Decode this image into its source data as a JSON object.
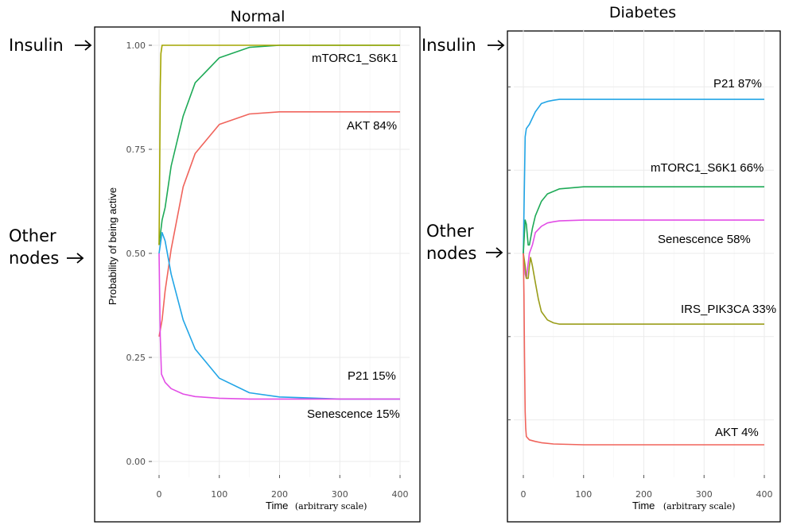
{
  "panels": {
    "normal": {
      "title": "Normal",
      "insulin_label": "Insulin",
      "other_label_line1": "Other",
      "other_label_line2": "nodes",
      "ylabel": "Probability of being active",
      "xlabel_main": "Time",
      "xlabel_unit": "(arbitrary scale)",
      "x_ticks": [
        "0",
        "100",
        "200",
        "300",
        "400"
      ],
      "y_ticks": [
        "0.00",
        "0.25",
        "0.50",
        "0.75",
        "1.00"
      ],
      "series_labels": [
        "mTORC1_S6K1",
        "AKT 84%",
        "P21 15%",
        "Senescence 15%"
      ]
    },
    "diabetes": {
      "title": "Diabetes",
      "insulin_label": "Insulin",
      "other_label_line1": "Other",
      "other_label_line2": "nodes",
      "xlabel_main": "Time",
      "xlabel_unit": "(arbitrary scale)",
      "x_ticks": [
        "0",
        "100",
        "200",
        "300",
        "400"
      ],
      "series_labels": [
        "P21 87%",
        "mTORC1_S6K1 66%",
        "Senescence 58%",
        "IRS_PIK3CA 33%",
        "AKT 4%"
      ]
    }
  },
  "colors": {
    "insulin_olive": "#a3a500",
    "mtorc_green": "#1eaa57",
    "akt_red": "#f0645c",
    "p21_blue": "#22a5e6",
    "senescence_magenta": "#e24ee6",
    "irs_olive": "#9a9d1a"
  },
  "chart_data": [
    {
      "type": "line",
      "title": "Normal",
      "xlabel": "Time (arbitrary scale)",
      "ylabel": "Probability of being active",
      "xlim": [
        0,
        400
      ],
      "ylim": [
        0,
        1
      ],
      "grid": true,
      "series": [
        {
          "name": "mTORC1_S6K1",
          "color": "#1eaa57",
          "x": [
            0,
            5,
            10,
            20,
            40,
            60,
            100,
            150,
            200,
            300,
            400
          ],
          "y": [
            0.52,
            0.58,
            0.61,
            0.71,
            0.83,
            0.91,
            0.97,
            0.995,
            1.0,
            1.0,
            1.0
          ]
        },
        {
          "name": "AKT 84%",
          "color": "#f0645c",
          "x": [
            0,
            5,
            10,
            20,
            40,
            60,
            100,
            150,
            200,
            300,
            400
          ],
          "y": [
            0.3,
            0.34,
            0.41,
            0.51,
            0.66,
            0.74,
            0.81,
            0.835,
            0.84,
            0.84,
            0.84
          ]
        },
        {
          "name": "P21 15%",
          "color": "#22a5e6",
          "x": [
            0,
            5,
            10,
            20,
            40,
            60,
            100,
            150,
            200,
            300,
            400
          ],
          "y": [
            0.5,
            0.55,
            0.53,
            0.45,
            0.34,
            0.27,
            0.2,
            0.165,
            0.155,
            0.15,
            0.15
          ]
        },
        {
          "name": "Senescence 15%",
          "color": "#e24ee6",
          "x": [
            0,
            2,
            4,
            10,
            20,
            40,
            60,
            100,
            150,
            200,
            300,
            400
          ],
          "y": [
            0.5,
            0.3,
            0.21,
            0.19,
            0.175,
            0.162,
            0.156,
            0.152,
            0.15,
            0.15,
            0.15,
            0.15
          ]
        },
        {
          "color": "#a3a500",
          "x": [
            0,
            1,
            2,
            3,
            5,
            10,
            50,
            100,
            200,
            300,
            400
          ],
          "y": [
            0.52,
            0.7,
            0.9,
            0.98,
            1.0,
            1.0,
            1.0,
            1.0,
            1.0,
            1.0,
            1.0
          ]
        }
      ]
    },
    {
      "type": "line",
      "title": "Diabetes",
      "xlabel": "Time (arbitrary scale)",
      "xlim": [
        0,
        400
      ],
      "grid": true,
      "series": [
        {
          "name": "P21 87%",
          "color": "#22a5e6",
          "x": [
            0,
            3,
            5,
            10,
            20,
            30,
            40,
            50,
            60,
            100,
            200,
            300,
            400
          ],
          "y": [
            0.5,
            0.78,
            0.8,
            0.81,
            0.84,
            0.86,
            0.865,
            0.868,
            0.87,
            0.87,
            0.87,
            0.87,
            0.87
          ]
        },
        {
          "name": "mTORC1_S6K1 66%",
          "color": "#1eaa57",
          "x": [
            0,
            3,
            5,
            8,
            10,
            15,
            20,
            30,
            40,
            60,
            100,
            200,
            300,
            400
          ],
          "y": [
            0.5,
            0.58,
            0.57,
            0.52,
            0.52,
            0.56,
            0.59,
            0.625,
            0.643,
            0.655,
            0.66,
            0.66,
            0.66,
            0.66
          ]
        },
        {
          "name": "Senescence 58%",
          "color": "#e24ee6",
          "x": [
            0,
            3,
            5,
            10,
            15,
            20,
            30,
            40,
            50,
            60,
            100,
            200,
            300,
            400
          ],
          "y": [
            0.5,
            0.45,
            0.44,
            0.5,
            0.52,
            0.55,
            0.565,
            0.573,
            0.576,
            0.578,
            0.58,
            0.58,
            0.58,
            0.58
          ]
        },
        {
          "name": "IRS_PIK3CA 33%",
          "color": "#9a9d1a",
          "x": [
            0,
            3,
            5,
            8,
            10,
            12,
            15,
            20,
            25,
            30,
            40,
            50,
            60,
            100,
            200,
            300,
            400
          ],
          "y": [
            0.5,
            0.47,
            0.44,
            0.44,
            0.47,
            0.49,
            0.47,
            0.43,
            0.39,
            0.36,
            0.34,
            0.333,
            0.33,
            0.33,
            0.33,
            0.33,
            0.33
          ]
        },
        {
          "name": "AKT 4%",
          "color": "#f0645c",
          "x": [
            0,
            1,
            2,
            3,
            4,
            5,
            8,
            10,
            20,
            30,
            50,
            100,
            200,
            300,
            400
          ],
          "y": [
            0.5,
            0.4,
            0.25,
            0.12,
            0.08,
            0.06,
            0.055,
            0.052,
            0.048,
            0.045,
            0.042,
            0.04,
            0.04,
            0.04,
            0.04
          ]
        }
      ]
    }
  ]
}
